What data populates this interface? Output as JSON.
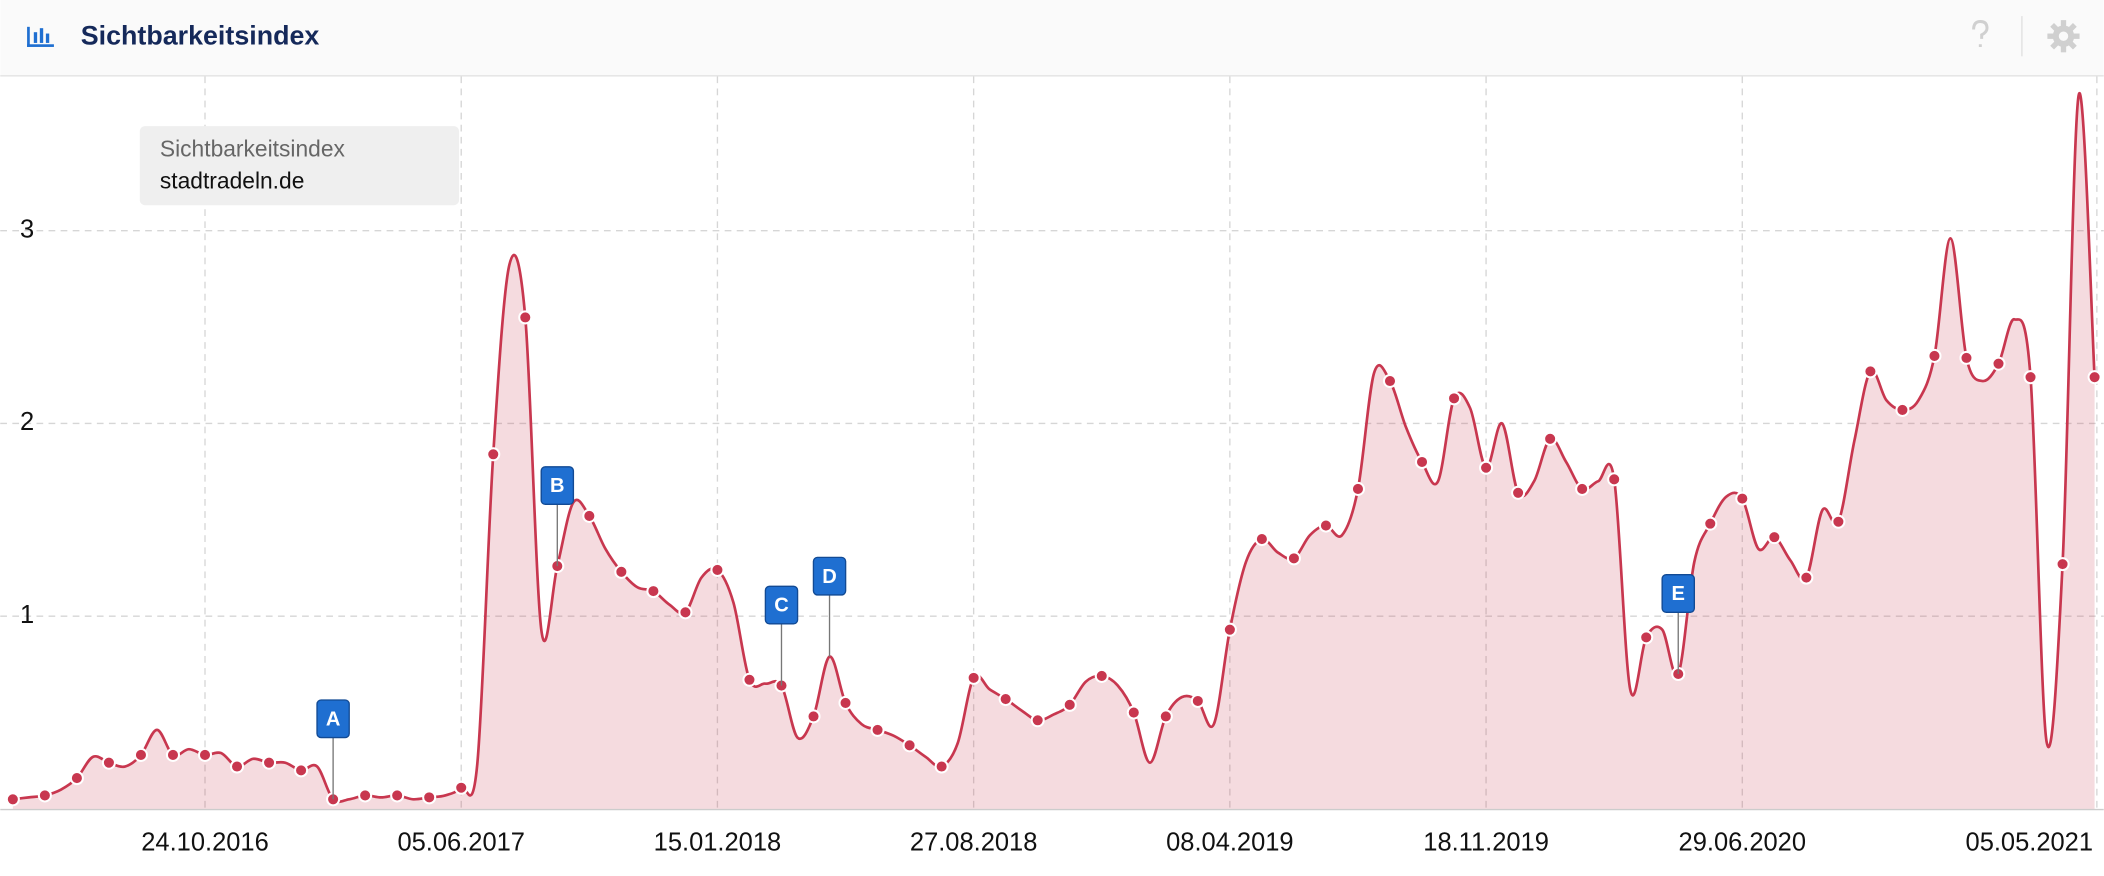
{
  "chart_data": {
    "type": "area",
    "title": "Sichtbarkeitsindex",
    "legend_title": "Sichtbarkeitsindex",
    "x": [
      "09.05.2016",
      "23.05.2016",
      "06.06.2016",
      "20.06.2016",
      "04.07.2016",
      "18.07.2016",
      "01.08.2016",
      "15.08.2016",
      "29.08.2016",
      "12.09.2016",
      "26.09.2016",
      "10.10.2016",
      "24.10.2016",
      "07.11.2016",
      "21.11.2016",
      "05.12.2016",
      "19.12.2016",
      "02.01.2017",
      "16.01.2017",
      "30.01.2017",
      "13.02.2017",
      "27.02.2017",
      "13.03.2017",
      "27.03.2017",
      "10.04.2017",
      "24.04.2017",
      "08.05.2017",
      "22.05.2017",
      "05.06.2017",
      "19.06.2017",
      "03.07.2017",
      "17.07.2017",
      "31.07.2017",
      "14.08.2017",
      "28.08.2017",
      "11.09.2017",
      "25.09.2017",
      "09.10.2017",
      "23.10.2017",
      "06.11.2017",
      "20.11.2017",
      "04.12.2017",
      "18.12.2017",
      "01.01.2018",
      "15.01.2018",
      "29.01.2018",
      "12.02.2018",
      "26.02.2018",
      "12.03.2018",
      "26.03.2018",
      "09.04.2018",
      "23.04.2018",
      "07.05.2018",
      "21.05.2018",
      "04.06.2018",
      "18.06.2018",
      "02.07.2018",
      "16.07.2018",
      "30.07.2018",
      "13.08.2018",
      "27.08.2018",
      "10.09.2018",
      "24.09.2018",
      "08.10.2018",
      "22.10.2018",
      "05.11.2018",
      "19.11.2018",
      "03.12.2018",
      "17.12.2018",
      "31.12.2018",
      "14.01.2019",
      "28.01.2019",
      "11.02.2019",
      "25.02.2019",
      "11.03.2019",
      "25.03.2019",
      "08.04.2019",
      "22.04.2019",
      "06.05.2019",
      "20.05.2019",
      "03.06.2019",
      "17.06.2019",
      "01.07.2019",
      "15.07.2019",
      "29.07.2019",
      "12.08.2019",
      "26.08.2019",
      "09.09.2019",
      "23.09.2019",
      "07.10.2019",
      "21.10.2019",
      "04.11.2019",
      "18.11.2019",
      "02.12.2019",
      "16.12.2019",
      "30.12.2019",
      "13.01.2020",
      "27.01.2020",
      "10.02.2020",
      "24.02.2020",
      "09.03.2020",
      "23.03.2020",
      "06.04.2020",
      "20.04.2020",
      "04.05.2020",
      "18.05.2020",
      "01.06.2020",
      "15.06.2020",
      "29.06.2020",
      "13.07.2020",
      "27.07.2020",
      "10.08.2020",
      "24.08.2020",
      "07.09.2020",
      "21.09.2020",
      "05.10.2020",
      "19.10.2020",
      "02.11.2020",
      "16.11.2020",
      "30.11.2020",
      "14.12.2020",
      "28.12.2020",
      "11.01.2021",
      "25.01.2021",
      "08.02.2021",
      "22.02.2021",
      "08.03.2021",
      "22.03.2021",
      "05.04.2021",
      "19.04.2021",
      "03.05.2021"
    ],
    "series": [
      {
        "name": "stadtradeln.de",
        "color": "#c8374f",
        "values": [
          0.05,
          0.06,
          0.07,
          0.1,
          0.16,
          0.27,
          0.24,
          0.22,
          0.28,
          0.41,
          0.28,
          0.31,
          0.28,
          0.29,
          0.22,
          0.26,
          0.24,
          0.24,
          0.2,
          0.22,
          0.05,
          0.05,
          0.07,
          0.06,
          0.07,
          0.05,
          0.06,
          0.07,
          0.11,
          0.23,
          1.84,
          2.82,
          2.55,
          0.93,
          1.26,
          1.59,
          1.52,
          1.35,
          1.23,
          1.15,
          1.13,
          1.06,
          1.02,
          1.2,
          1.24,
          1.07,
          0.67,
          0.65,
          0.64,
          0.37,
          0.48,
          0.79,
          0.55,
          0.44,
          0.41,
          0.38,
          0.33,
          0.27,
          0.22,
          0.34,
          0.68,
          0.62,
          0.57,
          0.51,
          0.46,
          0.49,
          0.54,
          0.66,
          0.69,
          0.64,
          0.5,
          0.24,
          0.48,
          0.58,
          0.56,
          0.44,
          0.93,
          1.28,
          1.4,
          1.33,
          1.3,
          1.42,
          1.47,
          1.42,
          1.66,
          2.26,
          2.22,
          1.98,
          1.8,
          1.7,
          2.13,
          2.08,
          1.77,
          2.0,
          1.64,
          1.7,
          1.92,
          1.8,
          1.66,
          1.7,
          1.71,
          0.62,
          0.89,
          0.93,
          0.7,
          1.28,
          1.48,
          1.62,
          1.61,
          1.35,
          1.41,
          1.29,
          1.2,
          1.55,
          1.49,
          1.91,
          2.27,
          2.12,
          2.07,
          2.12,
          2.35,
          2.96,
          2.34,
          2.22,
          2.31,
          2.54,
          2.24,
          0.35,
          1.27,
          3.7,
          2.24
        ]
      }
    ],
    "xlim": [
      "28.04.2016",
      "11.05.2021"
    ],
    "xticks": [
      "24.10.2016",
      "05.06.2017",
      "15.01.2018",
      "27.08.2018",
      "08.04.2019",
      "18.11.2019",
      "29.06.2020",
      "05.05.2021"
    ],
    "ylim": [
      0,
      3.8
    ],
    "yticks": [
      1,
      2,
      3
    ],
    "grid": true,
    "annotations": [
      {
        "label": "A",
        "x": "13.02.2017"
      },
      {
        "label": "B",
        "x": "28.08.2017"
      },
      {
        "label": "C",
        "x": "12.03.2018"
      },
      {
        "label": "D",
        "x": "23.04.2018"
      },
      {
        "label": "E",
        "x": "04.05.2020"
      }
    ]
  }
}
